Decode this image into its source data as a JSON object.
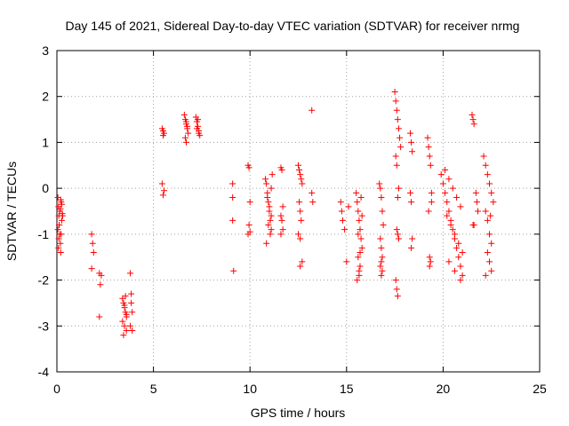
{
  "chart_data": {
    "type": "scatter",
    "title": "Day 145 of 2021, Sidereal Day-to-day VTEC variation (SDTVAR) for receiver nrmg",
    "xlabel": "GPS time / hours",
    "ylabel": "SDTVAR / TECUs",
    "xlim": [
      0,
      25
    ],
    "ylim": [
      -4,
      3
    ],
    "xticks": [
      "0",
      "5",
      "10",
      "15",
      "20",
      "25"
    ],
    "yticks": [
      "-4",
      "-3",
      "-2",
      "-1",
      "0",
      "1",
      "2",
      "3"
    ],
    "grid": true,
    "marker": "plus",
    "color": "#ff0000",
    "series": [
      {
        "name": "SDTVAR",
        "x": [
          0.05,
          0.08,
          0.1,
          0.12,
          0.15,
          0.18,
          0.2,
          0.22,
          0.25,
          0.05,
          0.1,
          0.15,
          0.2,
          0.25,
          0.3,
          0.08,
          0.12,
          0.18,
          0.22,
          0.28,
          1.8,
          1.85,
          1.9,
          1.8,
          2.2,
          2.25,
          2.3,
          2.2,
          3.4,
          3.45,
          3.5,
          3.55,
          3.6,
          3.4,
          3.5,
          3.6,
          3.45,
          3.55,
          3.5,
          3.6,
          3.8,
          3.85,
          3.9,
          3.8,
          3.9,
          3.85,
          5.45,
          5.5,
          5.55,
          5.5,
          5.45,
          5.55,
          5.5,
          6.6,
          6.65,
          6.7,
          6.75,
          6.8,
          6.65,
          6.7,
          6.75,
          6.7,
          7.2,
          7.25,
          7.3,
          7.35,
          7.4,
          7.3,
          7.25,
          7.35,
          9.1,
          9.1,
          9.1,
          9.15,
          9.9,
          9.95,
          10.0,
          9.95,
          10.0,
          9.9,
          10.8,
          10.85,
          10.9,
          10.95,
          11.0,
          11.05,
          11.1,
          11.15,
          10.9,
          11.0,
          11.1,
          10.95,
          11.05,
          10.85,
          11.1,
          11.6,
          11.65,
          11.7,
          11.6,
          11.65,
          11.7,
          11.6,
          12.5,
          12.55,
          12.6,
          12.65,
          12.7,
          12.55,
          12.6,
          12.65,
          12.5,
          12.6,
          12.7,
          12.6,
          13.2,
          13.2,
          13.25,
          14.7,
          14.75,
          14.8,
          14.9,
          15.0,
          15.1,
          15.5,
          15.55,
          15.6,
          15.65,
          15.7,
          15.75,
          15.8,
          15.6,
          15.7,
          15.65,
          15.55,
          15.75,
          15.8,
          15.6,
          15.7,
          15.65,
          16.7,
          16.75,
          16.8,
          16.85,
          16.9,
          16.75,
          16.8,
          16.85,
          16.8,
          16.75,
          16.85,
          16.8,
          17.5,
          17.55,
          17.6,
          17.65,
          17.7,
          17.75,
          17.8,
          17.55,
          17.6,
          17.7,
          17.65,
          17.6,
          17.65,
          17.7,
          17.55,
          17.6,
          17.65,
          18.3,
          18.35,
          18.4,
          18.3,
          18.35,
          18.4,
          18.35,
          19.2,
          19.25,
          19.3,
          19.35,
          19.4,
          19.25,
          19.3,
          19.35,
          19.3,
          19.4,
          19.9,
          20.0,
          20.1,
          20.2,
          20.3,
          20.4,
          20.5,
          20.6,
          20.7,
          20.8,
          20.9,
          21.0,
          20.1,
          20.3,
          20.5,
          20.7,
          20.9,
          20.2,
          20.4,
          20.6,
          20.8,
          21.0,
          20.3,
          20.6,
          20.9,
          21.5,
          21.55,
          21.6,
          21.7,
          21.75,
          21.8,
          21.6,
          21.55,
          22.1,
          22.2,
          22.3,
          22.4,
          22.5,
          22.6,
          22.2,
          22.3,
          22.4,
          22.5,
          22.3,
          22.4,
          22.5,
          22.2,
          22.45
        ],
        "y": [
          -0.2,
          -0.4,
          -0.6,
          -0.8,
          -1.0,
          -1.2,
          -1.4,
          -0.3,
          -0.7,
          -0.9,
          -1.1,
          -0.5,
          -0.25,
          -0.35,
          -0.6,
          -1.3,
          -0.8,
          -0.45,
          -1.0,
          -0.55,
          -1.0,
          -1.2,
          -1.4,
          -1.75,
          -1.85,
          -2.1,
          -1.9,
          -2.8,
          -2.4,
          -2.5,
          -2.6,
          -2.7,
          -2.8,
          -2.9,
          -3.0,
          -3.1,
          -3.2,
          -2.35,
          -2.55,
          -2.75,
          -1.85,
          -2.3,
          -2.7,
          -3.0,
          -3.1,
          -2.5,
          1.3,
          1.25,
          1.2,
          1.15,
          0.1,
          -0.05,
          -0.15,
          1.6,
          1.5,
          1.4,
          1.3,
          1.2,
          1.1,
          1.0,
          1.35,
          1.45,
          1.55,
          1.45,
          1.35,
          1.25,
          1.15,
          1.5,
          1.3,
          1.2,
          0.1,
          -0.2,
          -0.7,
          -1.8,
          0.5,
          0.45,
          -0.3,
          -0.8,
          -0.95,
          -1.0,
          0.2,
          0.1,
          -0.1,
          -0.3,
          -0.5,
          -0.7,
          -0.9,
          0.3,
          -0.2,
          -0.4,
          -0.6,
          -0.8,
          -1.0,
          -1.2,
          0.0,
          0.45,
          0.4,
          -0.4,
          -0.6,
          -0.7,
          -0.9,
          -1.0,
          0.5,
          0.4,
          0.3,
          0.2,
          0.1,
          -0.3,
          -0.5,
          -0.7,
          -1.0,
          -1.1,
          -1.6,
          -1.7,
          1.7,
          -0.1,
          -0.3,
          -0.3,
          -0.5,
          -0.7,
          -0.9,
          -1.6,
          -0.4,
          -0.1,
          -0.3,
          -0.5,
          -0.7,
          -0.9,
          -1.1,
          -1.3,
          -1.5,
          -1.7,
          -1.9,
          -2.0,
          -0.2,
          -0.6,
          -1.0,
          -1.4,
          -1.8,
          0.1,
          0.0,
          -0.2,
          -0.5,
          -0.8,
          -1.1,
          -1.3,
          -1.5,
          -1.6,
          -1.7,
          -1.8,
          -1.9,
          2.1,
          1.9,
          1.7,
          1.5,
          1.3,
          1.1,
          0.9,
          0.7,
          0.5,
          0.0,
          -0.2,
          -0.9,
          -1.0,
          -1.1,
          -2.0,
          -2.2,
          -2.35,
          1.2,
          1.0,
          0.8,
          -0.1,
          -0.3,
          -1.1,
          -1.3,
          1.1,
          0.9,
          0.7,
          0.5,
          -0.3,
          -0.5,
          -1.5,
          -1.6,
          -1.7,
          -0.1,
          0.3,
          0.1,
          -0.1,
          -0.3,
          -0.5,
          -0.7,
          -0.9,
          -1.1,
          -1.3,
          -1.5,
          -1.7,
          -1.9,
          0.4,
          0.2,
          0.0,
          -0.2,
          -0.4,
          -0.6,
          -0.8,
          -1.0,
          -1.2,
          -1.4,
          -1.6,
          -1.8,
          -2.0,
          1.6,
          1.5,
          1.4,
          -0.1,
          -0.3,
          -0.5,
          -0.8,
          -0.8,
          0.7,
          0.5,
          0.3,
          0.1,
          -0.1,
          -0.3,
          -0.5,
          -0.7,
          -1.0,
          -1.2,
          -1.4,
          -1.6,
          -1.8,
          -1.9,
          -0.6
        ]
      }
    ]
  }
}
